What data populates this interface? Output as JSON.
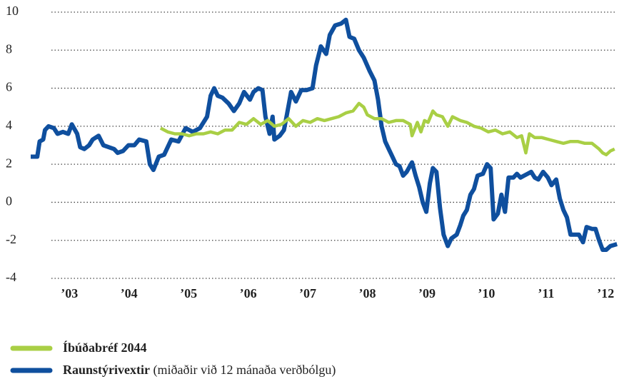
{
  "chart_data": {
    "type": "line",
    "series": [
      {
        "name": "Raunstýrivextir",
        "note": "(miðaðir við 12 mánaða verðbólgu)",
        "color": "#0f4f9e",
        "x": [
          2002.35,
          2002.46,
          2002.5,
          2002.56,
          2002.59,
          2002.65,
          2002.74,
          2002.8,
          2002.89,
          2002.98,
          2003.04,
          2003.13,
          2003.18,
          2003.25,
          2003.33,
          2003.39,
          2003.49,
          2003.57,
          2003.66,
          2003.75,
          2003.81,
          2003.9,
          2003.99,
          2004.09,
          2004.17,
          2004.29,
          2004.35,
          2004.41,
          2004.5,
          2004.59,
          2004.71,
          2004.83,
          2004.95,
          2005.07,
          2005.19,
          2005.25,
          2005.31,
          2005.37,
          2005.43,
          2005.49,
          2005.57,
          2005.67,
          2005.76,
          2005.85,
          2005.93,
          2006.03,
          2006.09,
          2006.17,
          2006.24,
          2006.29,
          2006.36,
          2006.41,
          2006.44,
          2006.53,
          2006.6,
          2006.65,
          2006.72,
          2006.8,
          2006.89,
          2006.98,
          2007.08,
          2007.14,
          2007.22,
          2007.31,
          2007.37,
          2007.46,
          2007.56,
          2007.64,
          2007.7,
          2007.78,
          2007.86,
          2007.94,
          2008.04,
          2008.12,
          2008.18,
          2008.24,
          2008.3,
          2008.36,
          2008.42,
          2008.48,
          2008.54,
          2008.6,
          2008.66,
          2008.75,
          2008.81,
          2008.87,
          2008.93,
          2008.99,
          2009.05,
          2009.1,
          2009.16,
          2009.22,
          2009.28,
          2009.35,
          2009.41,
          2009.5,
          2009.56,
          2009.61,
          2009.67,
          2009.73,
          2009.79,
          2009.85,
          2009.94,
          2010.01,
          2010.07,
          2010.12,
          2010.19,
          2010.25,
          2010.31,
          2010.37,
          2010.45,
          2010.51,
          2010.57,
          2010.63,
          2010.69,
          2010.75,
          2010.81,
          2010.87,
          2010.95,
          2011.03,
          2011.09,
          2011.17,
          2011.23,
          2011.29,
          2011.35,
          2011.41,
          2011.5,
          2011.55,
          2011.62,
          2011.68,
          2011.77,
          2011.83,
          2011.89,
          2011.95,
          2012.01,
          2012.08,
          2012.19
        ],
        "values": [
          2.4,
          2.4,
          3.2,
          3.3,
          3.8,
          4.0,
          3.9,
          3.6,
          3.7,
          3.6,
          4.1,
          3.6,
          2.9,
          2.8,
          3.0,
          3.3,
          3.5,
          3.0,
          2.9,
          2.8,
          2.6,
          2.7,
          3.0,
          3.0,
          3.3,
          3.2,
          2.0,
          1.7,
          2.4,
          2.5,
          3.3,
          3.2,
          3.9,
          3.7,
          3.9,
          4.2,
          4.5,
          5.6,
          6.0,
          5.6,
          5.5,
          5.2,
          4.8,
          5.2,
          5.8,
          5.4,
          5.8,
          6.0,
          5.9,
          4.5,
          3.6,
          4.5,
          3.3,
          3.5,
          3.8,
          4.6,
          5.8,
          5.3,
          5.9,
          5.9,
          6.0,
          7.2,
          8.2,
          7.8,
          8.8,
          9.3,
          9.4,
          9.6,
          8.7,
          8.6,
          8.0,
          7.6,
          6.9,
          6.4,
          5.4,
          4.0,
          3.2,
          2.8,
          2.4,
          2.0,
          1.9,
          1.4,
          1.6,
          2.1,
          1.4,
          0.8,
          0.0,
          -0.5,
          1.0,
          1.8,
          1.6,
          -0.3,
          -1.7,
          -2.3,
          -1.9,
          -1.7,
          -1.2,
          -0.7,
          -0.4,
          0.4,
          0.7,
          1.4,
          1.5,
          2.0,
          1.8,
          -0.9,
          -0.6,
          0.4,
          -0.5,
          1.3,
          1.3,
          1.5,
          1.3,
          1.4,
          1.5,
          1.6,
          1.3,
          1.2,
          1.6,
          1.3,
          0.9,
          1.2,
          0.2,
          -0.4,
          -0.8,
          -1.7,
          -1.7,
          -1.7,
          -2.1,
          -1.3,
          -1.4,
          -1.4,
          -2.0,
          -2.5,
          -2.5,
          -2.3,
          -2.2
        ]
      },
      {
        "name": "Íbúðabréf 2044",
        "color": "#a9cf45",
        "x": [
          2004.53,
          2004.65,
          2004.77,
          2004.89,
          2005.01,
          2005.13,
          2005.25,
          2005.37,
          2005.49,
          2005.61,
          2005.73,
          2005.85,
          2005.97,
          2006.09,
          2006.21,
          2006.33,
          2006.44,
          2006.56,
          2006.68,
          2006.8,
          2006.92,
          2007.04,
          2007.16,
          2007.28,
          2007.4,
          2007.52,
          2007.64,
          2007.76,
          2007.86,
          2007.94,
          2008.0,
          2008.12,
          2008.24,
          2008.36,
          2008.48,
          2008.6,
          2008.72,
          2008.75,
          2008.84,
          2008.9,
          2008.96,
          2009.02,
          2009.1,
          2009.16,
          2009.26,
          2009.35,
          2009.43,
          2009.56,
          2009.67,
          2009.79,
          2009.91,
          2010.03,
          2010.15,
          2010.27,
          2010.39,
          2010.51,
          2010.59,
          2010.66,
          2010.72,
          2010.81,
          2010.93,
          2011.05,
          2011.17,
          2011.29,
          2011.41,
          2011.53,
          2011.65,
          2011.77,
          2011.89,
          2011.95,
          2012.01,
          2012.08,
          2012.15
        ],
        "values": [
          3.9,
          3.7,
          3.6,
          3.6,
          3.5,
          3.6,
          3.6,
          3.7,
          3.6,
          3.8,
          3.8,
          4.2,
          4.1,
          4.4,
          4.1,
          4.3,
          4.0,
          4.1,
          4.4,
          4.0,
          4.3,
          4.2,
          4.4,
          4.3,
          4.4,
          4.5,
          4.7,
          4.8,
          5.2,
          5.0,
          4.6,
          4.4,
          4.4,
          4.2,
          4.3,
          4.3,
          4.1,
          3.5,
          4.2,
          3.7,
          4.3,
          4.2,
          4.8,
          4.6,
          4.5,
          4.0,
          4.5,
          4.3,
          4.2,
          4.0,
          3.9,
          3.7,
          3.8,
          3.6,
          3.7,
          3.4,
          3.5,
          2.6,
          3.6,
          3.4,
          3.4,
          3.3,
          3.2,
          3.1,
          3.2,
          3.2,
          3.1,
          3.1,
          2.8,
          2.6,
          2.5,
          2.7,
          2.8
        ]
      }
    ],
    "xlim": [
      2002.35,
      2012.2
    ],
    "xticks": [
      {
        "value": 2003,
        "label": "’03"
      },
      {
        "value": 2004,
        "label": "’04"
      },
      {
        "value": 2005,
        "label": "’05"
      },
      {
        "value": 2006,
        "label": "’06"
      },
      {
        "value": 2007,
        "label": "’07"
      },
      {
        "value": 2008,
        "label": "’08"
      },
      {
        "value": 2009,
        "label": "’09"
      },
      {
        "value": 2010,
        "label": "’10"
      },
      {
        "value": 2011,
        "label": "’11"
      },
      {
        "value": 2012,
        "label": "’12"
      }
    ],
    "ylim": [
      -4,
      10
    ],
    "yticks": [
      -4,
      -2,
      0,
      2,
      4,
      6,
      8,
      10
    ],
    "grid": true
  }
}
